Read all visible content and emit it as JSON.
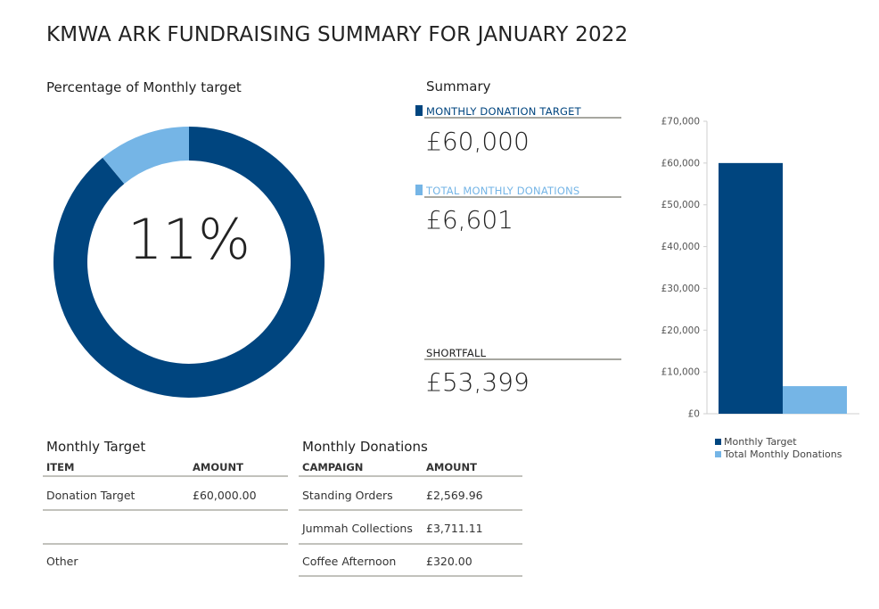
{
  "title": "KMWA ARK FUNDRAISING SUMMARY FOR JANUARY 2022",
  "donut": {
    "heading": "Percentage of Monthly target",
    "percent_label": "11%",
    "fraction": 0.11,
    "colors": {
      "achieved": "#75b5e6",
      "remaining": "#00457f"
    }
  },
  "summary": {
    "heading": "Summary",
    "target_label": "MONTHLY DONATION TARGET",
    "target_value": "£60,000",
    "donations_label": "TOTAL MONTHLY DONATIONS",
    "donations_value": "£6,601",
    "shortfall_label": "SHORTFALL",
    "shortfall_value": "£53,399",
    "colors": {
      "target": "#00457f",
      "donations": "#75b5e6"
    }
  },
  "chart_data": {
    "type": "bar",
    "series": [
      {
        "name": "Monthly Target",
        "value": 60000,
        "color": "#00457f"
      },
      {
        "name": "Total Monthly Donations",
        "value": 6601,
        "color": "#75b5e6"
      }
    ],
    "ylim": [
      0,
      70000
    ],
    "yticks": [
      0,
      10000,
      20000,
      30000,
      40000,
      50000,
      60000,
      70000
    ],
    "ytick_labels": [
      "£0",
      "£10,000",
      "£20,000",
      "£30,000",
      "£40,000",
      "£50,000",
      "£60,000",
      "£70,000"
    ],
    "legend_position": "bottom"
  },
  "monthly_target_table": {
    "heading": "Monthly Target",
    "columns": [
      "ITEM",
      "AMOUNT"
    ],
    "rows": [
      [
        "Donation Target",
        "£60,000.00"
      ],
      [
        "",
        ""
      ],
      [
        "Other",
        ""
      ]
    ]
  },
  "monthly_donations_table": {
    "heading": "Monthly Donations",
    "columns": [
      "CAMPAIGN",
      "AMOUNT"
    ],
    "rows": [
      [
        "Standing Orders",
        "£2,569.96"
      ],
      [
        "Jummah Collections",
        "£3,711.11"
      ],
      [
        "Coffee Afternoon",
        "£320.00"
      ]
    ]
  }
}
